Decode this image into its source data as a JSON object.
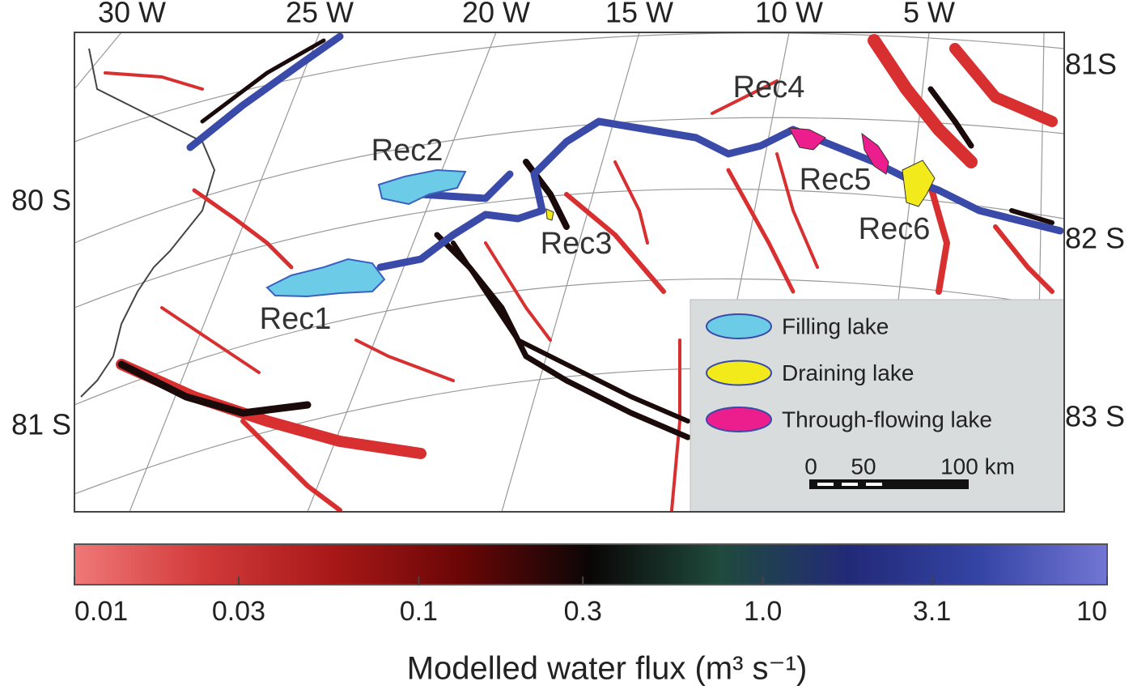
{
  "map": {
    "lon_labels": [
      "30 W",
      "25 W",
      "20 W",
      "15 W",
      "10 W",
      "5 W"
    ],
    "lat_labels_left": [
      "80 S",
      "81 S"
    ],
    "lat_labels_right": [
      "81S",
      "82 S",
      "83 S"
    ],
    "lake_labels": [
      "Rec1",
      "Rec2",
      "Rec3",
      "Rec4",
      "Rec5",
      "Rec6"
    ],
    "legend": [
      {
        "label": "Filling lake",
        "color": "#6ccbe6"
      },
      {
        "label": "Draining lake",
        "color": "#f2ea1a"
      },
      {
        "label": "Through-flowing lake",
        "color": "#ec1d8c"
      }
    ],
    "scale_bar": [
      "0",
      "50",
      "100 km"
    ]
  },
  "colorbar": {
    "title": "Modelled water flux (m³ s⁻¹)",
    "scale": "log",
    "lim": [
      0.01,
      10
    ],
    "ticks": [
      0.01,
      0.03,
      0.1,
      0.3,
      {
        "value": 1,
        "label": "1.0"
      },
      3.1,
      10
    ],
    "colors": [
      "#f07878",
      "#d23a3a",
      "#a81818",
      "#6a0606",
      "#0a0606",
      "#1f4a3c",
      "#222a78",
      "#3444a4",
      "#7276d4"
    ]
  }
}
